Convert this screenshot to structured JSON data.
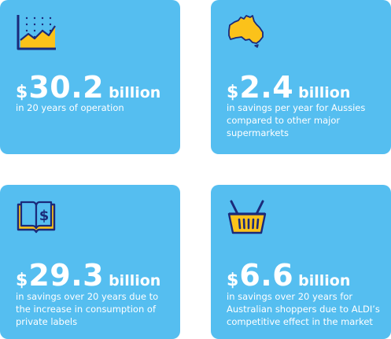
{
  "colors": {
    "card_background": "#55bef0",
    "icon_fill": "#fbc21a",
    "icon_outline": "#1b2a7a",
    "text": "#ffffff"
  },
  "cards": [
    {
      "icon": "area-chart-icon",
      "currency": "$",
      "amount": "30.2",
      "unit": "billion",
      "description": "in 20 years of operation"
    },
    {
      "icon": "australia-map-icon",
      "currency": "$",
      "amount": "2.4",
      "unit": "billion",
      "description": "in savings per year for Aussies compared to other major supermarkets"
    },
    {
      "icon": "book-dollar-icon",
      "currency": "$",
      "amount": "29.3",
      "unit": "billion",
      "description": "in savings over 20 years due to the increase in consumption of private labels"
    },
    {
      "icon": "shopping-basket-icon",
      "currency": "$",
      "amount": "6.6",
      "unit": "billion",
      "description": "in savings over 20 years for Australian shoppers due to ALDI’s competitive effect in the market"
    }
  ]
}
